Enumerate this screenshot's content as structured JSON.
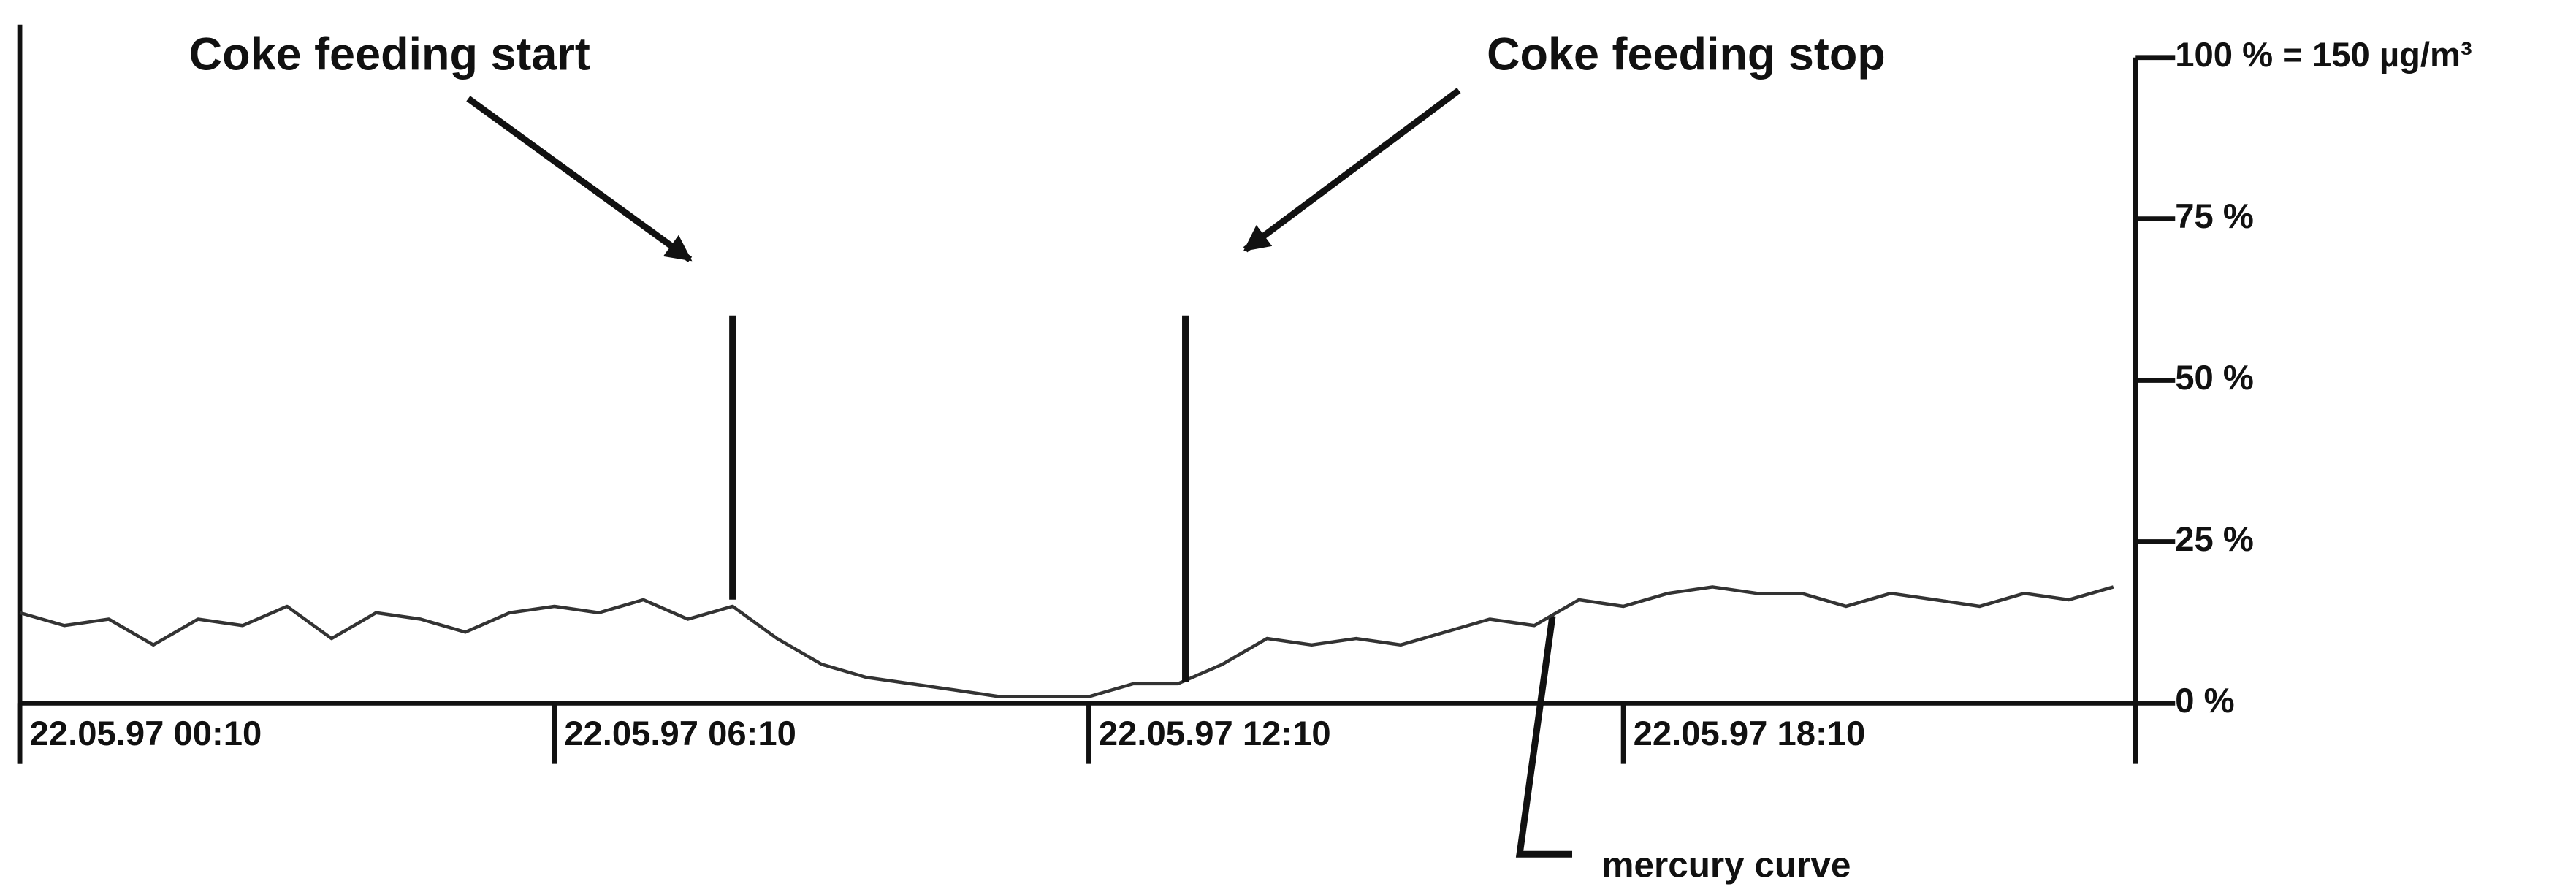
{
  "chart_data": {
    "type": "line",
    "x": [
      "22.05.97 00:10",
      "22.05.97 00:40",
      "22.05.97 01:10",
      "22.05.97 01:40",
      "22.05.97 02:10",
      "22.05.97 02:40",
      "22.05.97 03:10",
      "22.05.97 03:40",
      "22.05.97 04:10",
      "22.05.97 04:40",
      "22.05.97 05:10",
      "22.05.97 05:40",
      "22.05.97 06:10",
      "22.05.97 06:40",
      "22.05.97 07:10",
      "22.05.97 07:40",
      "22.05.97 08:10",
      "22.05.97 08:40",
      "22.05.97 09:10",
      "22.05.97 09:40",
      "22.05.97 10:10",
      "22.05.97 10:40",
      "22.05.97 11:10",
      "22.05.97 11:40",
      "22.05.97 12:10",
      "22.05.97 12:40",
      "22.05.97 13:10",
      "22.05.97 13:40",
      "22.05.97 14:10",
      "22.05.97 14:40",
      "22.05.97 15:10",
      "22.05.97 15:40",
      "22.05.97 16:10",
      "22.05.97 16:40",
      "22.05.97 17:10",
      "22.05.97 17:40",
      "22.05.97 18:10",
      "22.05.97 18:40",
      "22.05.97 19:10",
      "22.05.97 19:40",
      "22.05.97 20:10",
      "22.05.97 20:40",
      "22.05.97 21:10",
      "22.05.97 21:40",
      "22.05.97 22:10",
      "22.05.97 22:40",
      "22.05.97 23:10",
      "22.05.97 23:40"
    ],
    "series": [
      {
        "name": "mercury curve",
        "color": "#333333",
        "values": [
          14,
          12,
          13,
          9,
          13,
          12,
          15,
          10,
          14,
          13,
          11,
          14,
          15,
          14,
          16,
          13,
          15,
          10,
          6,
          4,
          3,
          2,
          1,
          1,
          1,
          3,
          3,
          6,
          10,
          9,
          10,
          9,
          11,
          13,
          12,
          16,
          15,
          17,
          18,
          17,
          17,
          15,
          17,
          16,
          15,
          17,
          16,
          18
        ]
      }
    ],
    "xlim": [
      "22.05.97 00:10",
      "22.05.97 23:55"
    ],
    "xticks": [
      "22.05.97 00:10",
      "22.05.97 06:10",
      "22.05.97 12:10",
      "22.05.97 18:10"
    ],
    "ylim": [
      0,
      100
    ],
    "yticks": [
      {
        "value": 0,
        "label": "0 %"
      },
      {
        "value": 25,
        "label": "25 %"
      },
      {
        "value": 50,
        "label": "50 %"
      },
      {
        "value": 75,
        "label": "75 %"
      },
      {
        "value": 100,
        "label": "100 % = 150 µg/m³"
      }
    ],
    "yaxis_side": "right",
    "annotations": [
      {
        "text": "Coke feeding start",
        "x": "22.05.97 08:10"
      },
      {
        "text": "Coke feeding stop",
        "x": "22.05.97 13:15"
      }
    ]
  }
}
